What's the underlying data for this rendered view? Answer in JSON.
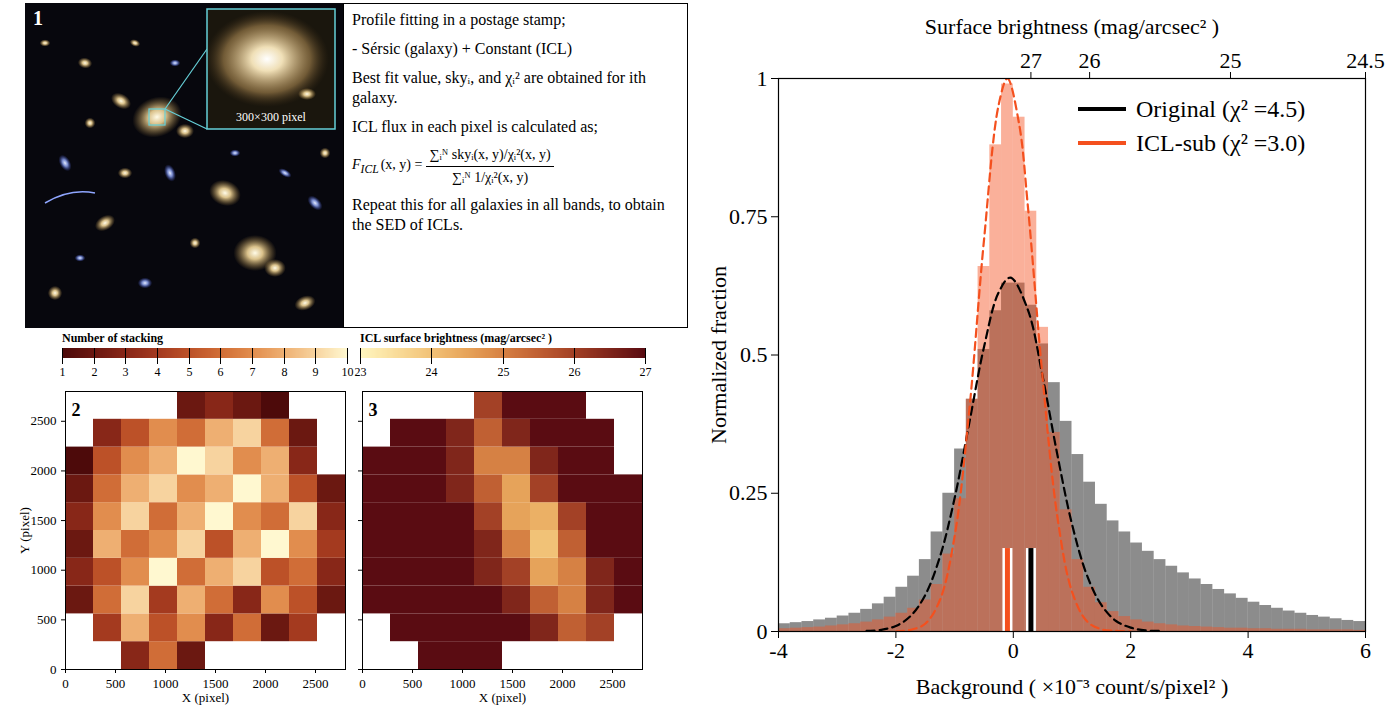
{
  "figure_panel_1": {
    "panel": "1",
    "inset_label": "300×300 pixel",
    "lines": [
      "Profile fitting in a postage stamp;",
      "- Sérsic (galaxy) + Constant (ICL)",
      "Best fit value, skyᵢ, and χᵢ² are obtained for ith galaxy.",
      "ICL flux in each pixel is calculated as;"
    ],
    "formula": {
      "lhs": "F",
      "lhs_sub": "ICL",
      "lhs_rest": "(x, y) =",
      "numerator": "∑ᵢᴺ skyᵢ(x, y)/χᵢ²(x, y)",
      "denominator": "∑ᵢᴺ 1/χᵢ²(x, y)"
    },
    "closing": "Repeat this for all galaxies in all bands, to obtain the SED of ICLs."
  },
  "chart_data": [
    {
      "type": "heatmap",
      "panel": "2",
      "xlabel": "X (pixel)",
      "ylabel": "Y (pixel)",
      "xlim": [
        0,
        2800
      ],
      "ylim": [
        0,
        2800
      ],
      "xticks": [
        0,
        500,
        1000,
        1500,
        2000,
        2500
      ],
      "yticks": [
        0,
        500,
        1000,
        1500,
        2000,
        2500
      ],
      "x_edges": [
        0,
        280,
        560,
        840,
        1120,
        1400,
        1680,
        1960,
        2240,
        2520,
        2800
      ],
      "y_edges": [
        0,
        280,
        560,
        840,
        1120,
        1400,
        1680,
        1960,
        2240,
        2520,
        2800
      ],
      "values": [
        [
          null,
          null,
          3,
          6,
          2,
          null,
          null,
          null,
          null,
          null
        ],
        [
          null,
          4,
          8,
          5,
          7,
          3,
          6,
          2,
          4,
          null
        ],
        [
          2,
          6,
          9,
          4,
          8,
          6,
          3,
          7,
          5,
          2
        ],
        [
          3,
          5,
          7,
          10,
          6,
          8,
          9,
          5,
          6,
          3
        ],
        [
          2,
          8,
          6,
          7,
          9,
          5,
          8,
          10,
          7,
          4
        ],
        [
          3,
          7,
          9,
          6,
          8,
          10,
          7,
          6,
          9,
          3
        ],
        [
          2,
          6,
          8,
          9,
          7,
          8,
          10,
          8,
          5,
          2
        ],
        [
          1,
          5,
          7,
          8,
          10,
          9,
          7,
          8,
          3,
          null
        ],
        [
          null,
          3,
          5,
          7,
          6,
          8,
          9,
          6,
          2,
          null
        ],
        [
          null,
          null,
          null,
          null,
          2,
          3,
          2,
          1,
          null,
          null
        ]
      ],
      "colorbar": {
        "label": "Number of stacking",
        "range": [
          1,
          10
        ],
        "ticks": [
          1,
          2,
          3,
          4,
          5,
          6,
          7,
          8,
          9,
          10
        ],
        "colors": [
          "#4d0a0a",
          "#a8321e",
          "#e8893a",
          "#fff8d0"
        ]
      }
    },
    {
      "type": "heatmap",
      "panel": "3",
      "xlabel": "X (pixel)",
      "tick_labels": "x",
      "xlim": [
        0,
        2800
      ],
      "ylim": [
        0,
        2800
      ],
      "xticks": [
        0,
        500,
        1000,
        1500,
        2000,
        2500
      ],
      "yticks": [
        0,
        500,
        1000,
        1500,
        2000,
        2500
      ],
      "x_edges": [
        0,
        280,
        560,
        840,
        1120,
        1400,
        1680,
        1960,
        2240,
        2520,
        2800
      ],
      "y_edges": [
        0,
        280,
        560,
        840,
        1120,
        1400,
        1680,
        1960,
        2240,
        2520,
        2800
      ],
      "values": [
        [
          null,
          null,
          27,
          27,
          27,
          null,
          null,
          null,
          null,
          null
        ],
        [
          null,
          27,
          27,
          27,
          27,
          27,
          26.5,
          25.5,
          26,
          null
        ],
        [
          27,
          27,
          27,
          27,
          27,
          26.5,
          25.5,
          25,
          26.5,
          27
        ],
        [
          27,
          27,
          27,
          27,
          26.5,
          26,
          24.5,
          25,
          26.5,
          27
        ],
        [
          27,
          27,
          27,
          27,
          26.5,
          25,
          24,
          25.5,
          27,
          27
        ],
        [
          27,
          27,
          27,
          27,
          26,
          24.5,
          24.3,
          26,
          27,
          27
        ],
        [
          27,
          27,
          27,
          26.5,
          25.5,
          24.5,
          26,
          27,
          27,
          27
        ],
        [
          27,
          27,
          27,
          26.5,
          25,
          25,
          26.5,
          27,
          27,
          null
        ],
        [
          null,
          27,
          27,
          26.5,
          25.5,
          26.5,
          27,
          27,
          27,
          null
        ],
        [
          null,
          null,
          null,
          null,
          26,
          27,
          27,
          27,
          null,
          null
        ]
      ],
      "colorbar": {
        "label": "ICL surface brightness (mag/arcsec² )",
        "range": [
          23,
          27
        ],
        "ticks": [
          23,
          24,
          25,
          26,
          27
        ],
        "colors": [
          "#fff6c0",
          "#f0b35a",
          "#c0502a",
          "#5a0c12"
        ]
      }
    },
    {
      "type": "histogram",
      "xlabel": "Background ( ×10⁻³ count/s/pixel² )",
      "ylabel": "Normalized fraction",
      "x2label": "Surface brightness (mag/arcsec² )",
      "xlim": [
        -4,
        6
      ],
      "ylim": [
        0,
        1
      ],
      "xticks": [
        -4,
        -2,
        0,
        2,
        4,
        6
      ],
      "yticks": [
        0,
        0.25,
        0.5,
        0.75,
        1
      ],
      "x2ticks": [
        {
          "value": 0.3,
          "label": "27"
        },
        {
          "value": 1.3,
          "label": "26"
        },
        {
          "value": 3.7,
          "label": "25"
        },
        {
          "value": 6,
          "label": "24.5"
        }
      ],
      "legend": "top-right",
      "marker_top": 0.15,
      "bins": [
        -4,
        -3.8,
        -3.6,
        -3.4,
        -3.2,
        -3,
        -2.8,
        -2.6,
        -2.4,
        -2.2,
        -2,
        -1.8,
        -1.6,
        -1.4,
        -1.2,
        -1,
        -0.8,
        -0.6,
        -0.4,
        -0.2,
        0,
        0.2,
        0.4,
        0.6,
        0.8,
        1,
        1.2,
        1.4,
        1.6,
        1.8,
        2,
        2.2,
        2.4,
        2.6,
        2.8,
        3,
        3.2,
        3.4,
        3.6,
        3.8,
        4,
        4.2,
        4.4,
        4.6,
        4.8,
        5,
        5.2,
        5.4,
        5.6,
        5.8,
        6
      ],
      "series": [
        {
          "name": "Original (χ² =4.5)",
          "color": "#000000",
          "values": [
            0.014,
            0.016,
            0.018,
            0.021,
            0.024,
            0.028,
            0.033,
            0.04,
            0.05,
            0.062,
            0.08,
            0.1,
            0.13,
            0.18,
            0.25,
            0.33,
            0.42,
            0.51,
            0.58,
            0.63,
            0.63,
            0.59,
            0.52,
            0.45,
            0.38,
            0.32,
            0.27,
            0.23,
            0.2,
            0.18,
            0.16,
            0.145,
            0.13,
            0.118,
            0.106,
            0.095,
            0.085,
            0.076,
            0.068,
            0.06,
            0.053,
            0.047,
            0.042,
            0.037,
            0.033,
            0.029,
            0.026,
            0.023,
            0.02,
            0.018
          ],
          "fit": {
            "line_style": "dashed",
            "x": [
              -2.5,
              -2.25,
              -2,
              -1.75,
              -1.5,
              -1.25,
              -1,
              -0.75,
              -0.5,
              -0.25,
              -0.05,
              0.25,
              0.5,
              0.75,
              1,
              1.25,
              1.5,
              1.75,
              2,
              2.25,
              2.5
            ],
            "values": [
              0.001,
              0.003,
              0.01,
              0.028,
              0.066,
              0.135,
              0.241,
              0.377,
              0.514,
              0.613,
              0.64,
              0.581,
              0.461,
              0.32,
              0.194,
              0.103,
              0.048,
              0.019,
              0.007,
              0.002,
              0.001
            ]
          },
          "peak_marker": 0.3
        },
        {
          "name": "ICL-sub (χ² =3.0)",
          "color": "#f4501e",
          "values": [
            0.005,
            0.006,
            0.007,
            0.008,
            0.01,
            0.012,
            0.014,
            0.017,
            0.021,
            0.026,
            0.033,
            0.042,
            0.057,
            0.085,
            0.14,
            0.24,
            0.42,
            0.66,
            0.88,
            0.99,
            0.93,
            0.76,
            0.55,
            0.36,
            0.22,
            0.13,
            0.08,
            0.052,
            0.036,
            0.027,
            0.021,
            0.017,
            0.014,
            0.012,
            0.01,
            0.009,
            0.008,
            0.007,
            0.006,
            0.006,
            0.005,
            0.005,
            0.004,
            0.004,
            0.004,
            0.003,
            0.003,
            0.003,
            0.003,
            0.002
          ],
          "fit": {
            "line_style": "dashed",
            "x": [
              -2,
              -1.75,
              -1.5,
              -1.25,
              -1,
              -0.75,
              -0.5,
              -0.25,
              -0.1,
              0.1,
              0.25,
              0.5,
              0.75,
              1,
              1.25,
              1.5,
              1.75,
              2
            ],
            "values": [
              0,
              0.003,
              0.014,
              0.057,
              0.172,
              0.4,
              0.707,
              0.952,
              1,
              0.917,
              0.767,
              0.458,
              0.208,
              0.072,
              0.019,
              0.004,
              0.001,
              0
            ]
          },
          "peak_marker": -0.1
        }
      ]
    }
  ]
}
